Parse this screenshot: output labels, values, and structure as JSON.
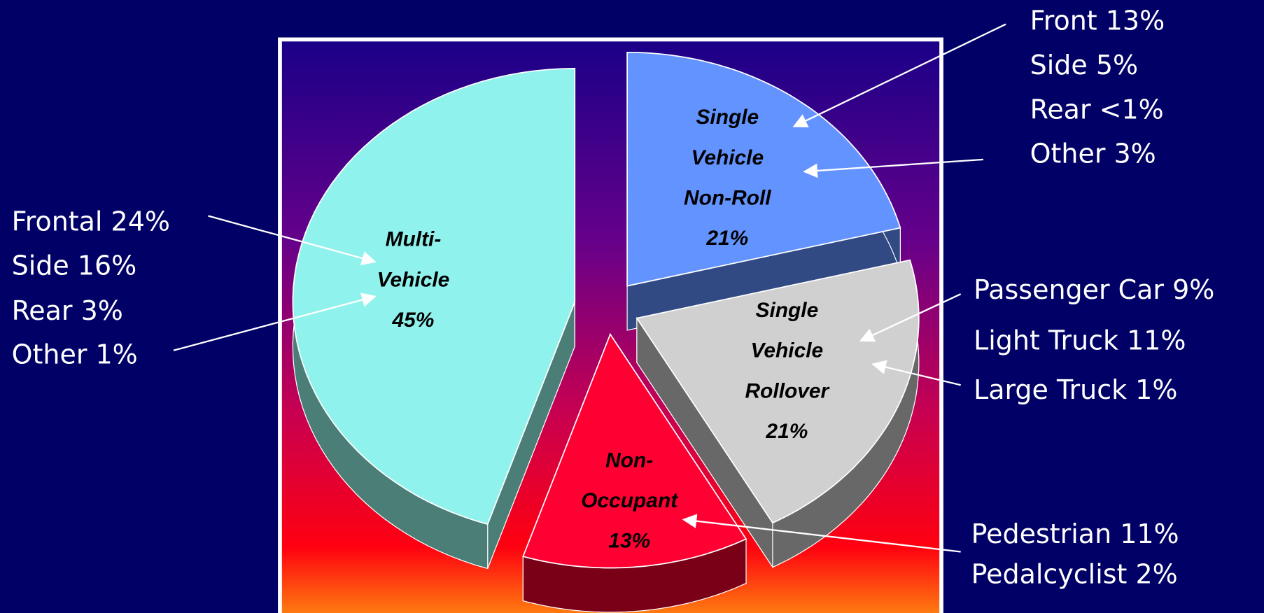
{
  "chart_data": {
    "type": "pie",
    "categories": [
      [
        "Single",
        "Vehicle",
        "Non-Roll"
      ],
      [
        "Single",
        "Vehicle",
        "Rollover"
      ],
      [
        "Non-",
        "Occupant"
      ],
      [
        "Multi-",
        "Vehicle"
      ]
    ],
    "values": [
      21,
      21,
      13,
      45
    ],
    "value_labels": [
      "21%",
      "21%",
      "13%",
      "45%"
    ],
    "colors": [
      "#6393ff",
      "#d0d0d0",
      "#ff0033",
      "#90f2ec"
    ],
    "side_colors": [
      "#314a84",
      "#686868",
      "#7a0018",
      "#4a7e76"
    ],
    "annotations": [
      [
        "Front 13%",
        "Side 5%",
        "Rear <1%",
        "Other  3%"
      ],
      [
        "Frontal 24%",
        "Side 16%",
        "Rear  3%",
        "Other  1%"
      ],
      [
        "Passenger Car 9%",
        "Light Truck 11%",
        "Large Truck 1%"
      ],
      [
        "Pedestrian 11%",
        "Pedalcyclist 2%"
      ]
    ]
  }
}
